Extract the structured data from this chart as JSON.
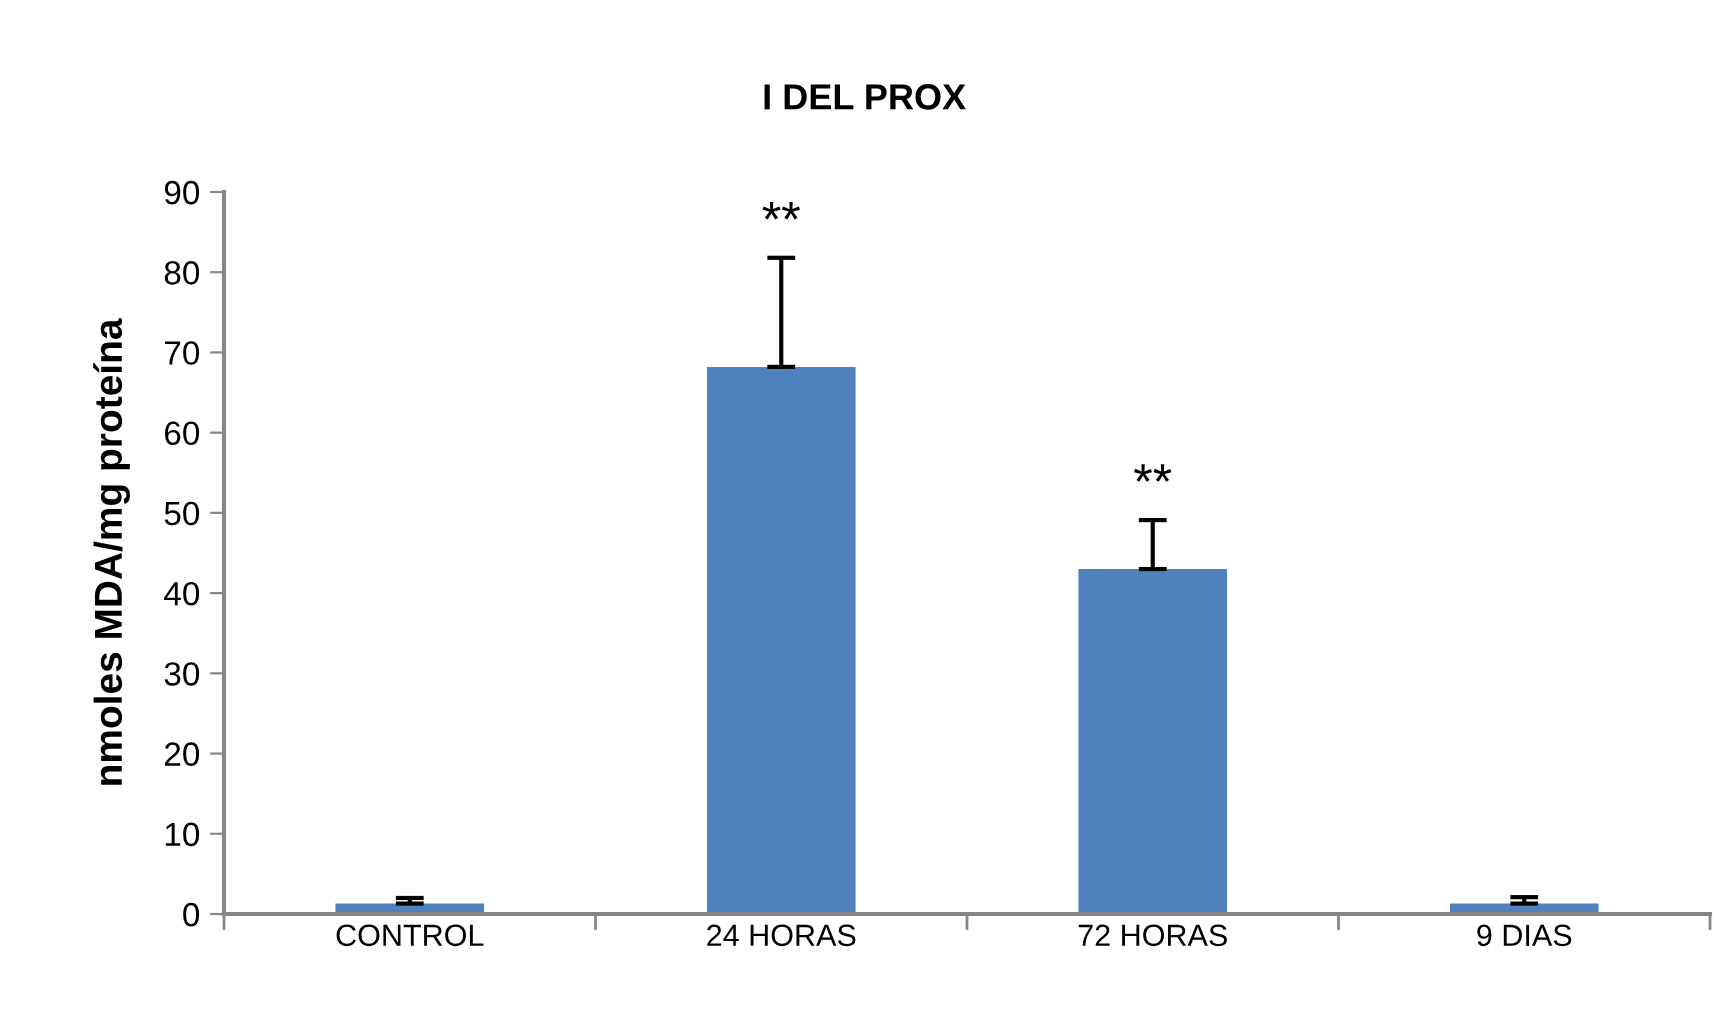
{
  "chart_data": {
    "type": "bar",
    "title": "I DEL PROX",
    "ylabel": "nmoles MDA/mg proteína",
    "categories": [
      "CONTROL",
      "24 HORAS",
      "72 HORAS",
      "9 DIAS"
    ],
    "values": [
      1.3,
      68.2,
      43.0,
      1.3
    ],
    "errors": [
      0.7,
      13.6,
      6.1,
      0.8
    ],
    "color": "#4f81bd",
    "ylim": [
      0,
      90
    ],
    "yticks": [
      0,
      10,
      20,
      30,
      40,
      50,
      60,
      70,
      80,
      90
    ],
    "grid": false,
    "value_labels": [
      null,
      "**",
      "**",
      null
    ]
  }
}
